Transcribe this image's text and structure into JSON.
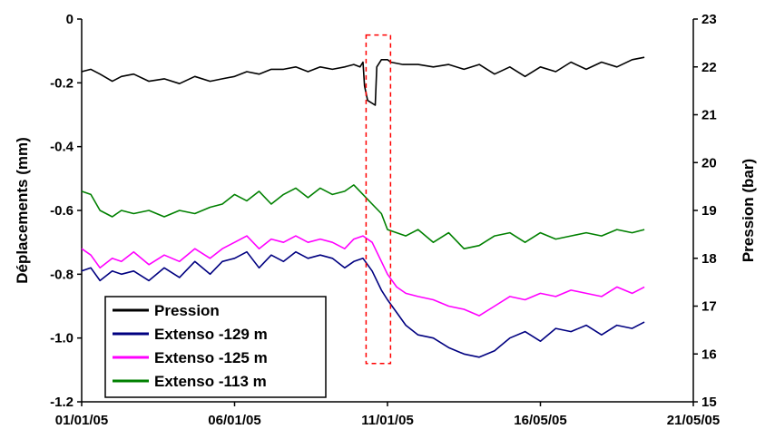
{
  "chart_data": {
    "type": "line",
    "title": "",
    "ylabel_left": "Déplacements (mm)",
    "ylabel_right": "Pression (bar)",
    "xlabel": "",
    "xlim": [
      0,
      20
    ],
    "ylim_left": [
      -1.2,
      0
    ],
    "ylim_right": [
      15,
      23
    ],
    "x_tick_labels": [
      "01/01/05",
      "06/01/05",
      "11/01/05",
      "16/05/05",
      "21/05/05"
    ],
    "y_left_tick_labels": [
      "0",
      "-0.2",
      "-0.4",
      "-0.6",
      "-0.8",
      "-1.0",
      "-1.2"
    ],
    "y_right_tick_labels": [
      "23",
      "22",
      "21",
      "20",
      "19",
      "18",
      "17",
      "16",
      "15"
    ],
    "grid": false,
    "legend_position": "bottom-left",
    "highlight_box": {
      "x_range": [
        9.3,
        10.1
      ],
      "y_range_left": [
        -1.08,
        -0.05
      ],
      "style": "dashed",
      "color": "#ff0000"
    },
    "series": [
      {
        "name": "Pression",
        "color": "#000000",
        "axis": "right",
        "x": [
          0.0,
          0.3,
          0.6,
          1.0,
          1.3,
          1.7,
          2.2,
          2.7,
          3.2,
          3.7,
          4.2,
          4.6,
          5.0,
          5.4,
          5.8,
          6.2,
          6.6,
          7.0,
          7.4,
          7.8,
          8.2,
          8.6,
          8.9,
          9.1,
          9.2,
          9.25,
          9.35,
          9.6,
          9.65,
          9.8,
          10.0,
          10.1,
          10.5,
          11.0,
          11.5,
          12.0,
          12.5,
          13.0,
          13.5,
          14.0,
          14.5,
          15.0,
          15.5,
          16.0,
          16.5,
          17.0,
          17.5,
          18.0,
          18.4
        ],
        "y": [
          21.9,
          21.95,
          21.85,
          21.7,
          21.8,
          21.85,
          21.7,
          21.75,
          21.65,
          21.8,
          21.7,
          21.75,
          21.8,
          21.9,
          21.85,
          21.95,
          21.95,
          22.0,
          21.9,
          22.0,
          21.95,
          22.0,
          22.05,
          22.0,
          22.1,
          21.6,
          21.3,
          21.2,
          22.0,
          22.15,
          22.15,
          22.1,
          22.05,
          22.05,
          22.0,
          22.05,
          21.95,
          22.05,
          21.85,
          22.0,
          21.8,
          22.0,
          21.9,
          22.1,
          21.95,
          22.1,
          22.0,
          22.15,
          22.2
        ]
      },
      {
        "name": "Extenso -129 m",
        "color": "#000080",
        "axis": "left",
        "x": [
          0.0,
          0.3,
          0.6,
          1.0,
          1.3,
          1.7,
          2.2,
          2.7,
          3.2,
          3.7,
          4.2,
          4.6,
          5.0,
          5.4,
          5.8,
          6.2,
          6.6,
          7.0,
          7.4,
          7.8,
          8.2,
          8.6,
          8.9,
          9.2,
          9.5,
          9.8,
          10.0,
          10.3,
          10.6,
          11.0,
          11.5,
          12.0,
          12.5,
          13.0,
          13.5,
          14.0,
          14.5,
          15.0,
          15.5,
          16.0,
          16.5,
          17.0,
          17.5,
          18.0,
          18.4
        ],
        "y": [
          -0.79,
          -0.78,
          -0.82,
          -0.79,
          -0.8,
          -0.79,
          -0.82,
          -0.78,
          -0.81,
          -0.76,
          -0.8,
          -0.76,
          -0.75,
          -0.73,
          -0.78,
          -0.74,
          -0.76,
          -0.73,
          -0.75,
          -0.74,
          -0.75,
          -0.78,
          -0.76,
          -0.75,
          -0.79,
          -0.85,
          -0.88,
          -0.92,
          -0.96,
          -0.99,
          -1.0,
          -1.03,
          -1.05,
          -1.06,
          -1.04,
          -1.0,
          -0.98,
          -1.01,
          -0.97,
          -0.98,
          -0.96,
          -0.99,
          -0.96,
          -0.97,
          -0.95
        ]
      },
      {
        "name": "Extenso -125 m",
        "color": "#ff00ff",
        "axis": "left",
        "x": [
          0.0,
          0.3,
          0.6,
          1.0,
          1.3,
          1.7,
          2.2,
          2.7,
          3.2,
          3.7,
          4.2,
          4.6,
          5.0,
          5.4,
          5.8,
          6.2,
          6.6,
          7.0,
          7.4,
          7.8,
          8.2,
          8.6,
          8.9,
          9.2,
          9.5,
          9.8,
          10.0,
          10.3,
          10.6,
          11.0,
          11.5,
          12.0,
          12.5,
          13.0,
          13.5,
          14.0,
          14.5,
          15.0,
          15.5,
          16.0,
          16.5,
          17.0,
          17.5,
          18.0,
          18.4
        ],
        "y": [
          -0.72,
          -0.74,
          -0.78,
          -0.75,
          -0.76,
          -0.73,
          -0.77,
          -0.74,
          -0.76,
          -0.72,
          -0.75,
          -0.72,
          -0.7,
          -0.68,
          -0.72,
          -0.69,
          -0.7,
          -0.68,
          -0.7,
          -0.69,
          -0.7,
          -0.72,
          -0.69,
          -0.68,
          -0.7,
          -0.76,
          -0.8,
          -0.84,
          -0.86,
          -0.87,
          -0.88,
          -0.9,
          -0.91,
          -0.93,
          -0.9,
          -0.87,
          -0.88,
          -0.86,
          -0.87,
          -0.85,
          -0.86,
          -0.87,
          -0.84,
          -0.86,
          -0.84
        ]
      },
      {
        "name": "Extenso -113 m",
        "color": "#008000",
        "axis": "left",
        "x": [
          0.0,
          0.3,
          0.6,
          1.0,
          1.3,
          1.7,
          2.2,
          2.7,
          3.2,
          3.7,
          4.2,
          4.6,
          5.0,
          5.4,
          5.8,
          6.2,
          6.6,
          7.0,
          7.4,
          7.8,
          8.2,
          8.6,
          8.9,
          9.2,
          9.5,
          9.8,
          10.0,
          10.3,
          10.6,
          11.0,
          11.5,
          12.0,
          12.5,
          13.0,
          13.5,
          14.0,
          14.5,
          15.0,
          15.5,
          16.0,
          16.5,
          17.0,
          17.5,
          18.0,
          18.4
        ],
        "y": [
          -0.54,
          -0.55,
          -0.6,
          -0.62,
          -0.6,
          -0.61,
          -0.6,
          -0.62,
          -0.6,
          -0.61,
          -0.59,
          -0.58,
          -0.55,
          -0.57,
          -0.54,
          -0.58,
          -0.55,
          -0.53,
          -0.56,
          -0.53,
          -0.55,
          -0.54,
          -0.52,
          -0.55,
          -0.58,
          -0.61,
          -0.66,
          -0.67,
          -0.68,
          -0.66,
          -0.7,
          -0.67,
          -0.72,
          -0.71,
          -0.68,
          -0.67,
          -0.7,
          -0.67,
          -0.69,
          -0.68,
          -0.67,
          -0.68,
          -0.66,
          -0.67,
          -0.66
        ]
      }
    ]
  }
}
